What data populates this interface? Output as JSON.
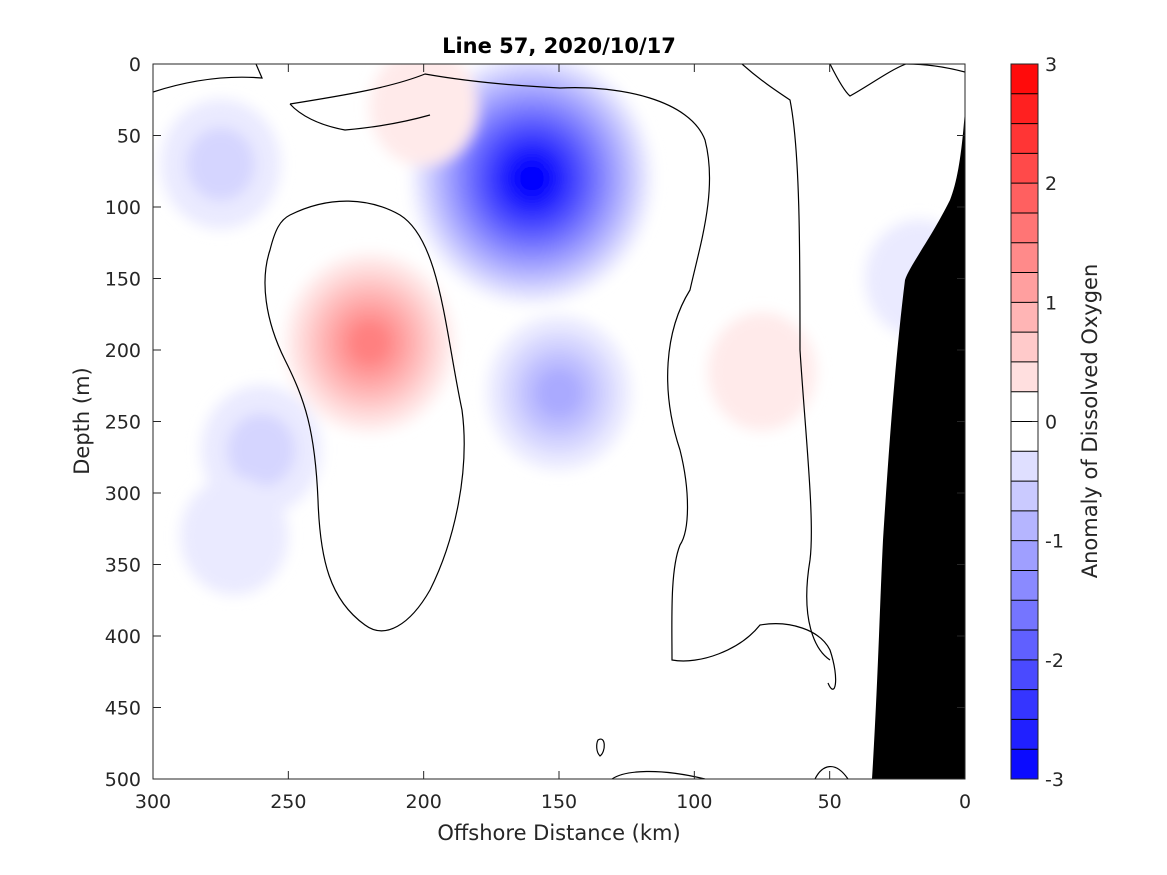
{
  "chart_data": {
    "type": "heatmap",
    "subtype": "filled-contour",
    "title": "Line 57, 2020/10/17",
    "xlabel": "Offshore Distance (km)",
    "ylabel": "Depth (m)",
    "colorbar_label": "Anomaly of Dissolved Oxygen",
    "xlim": [
      300,
      0
    ],
    "ylim": [
      0,
      500
    ],
    "x_reversed": true,
    "y_reversed": true,
    "x_ticks": [
      "300",
      "250",
      "200",
      "150",
      "100",
      "50",
      "0"
    ],
    "y_ticks": [
      "0",
      "50",
      "100",
      "150",
      "200",
      "250",
      "300",
      "350",
      "400",
      "450",
      "500"
    ],
    "colorbar_ticks": [
      "3",
      "2",
      "1",
      "0",
      "-1",
      "-2",
      "-3"
    ],
    "colorbar_range": [
      -3,
      3
    ],
    "contour_step": 0.25,
    "colormap": {
      "negative": "#0000ff",
      "zero": "#ffffff",
      "positive": "#ff0000"
    },
    "mask_color": "#000000",
    "features": [
      {
        "sign": "negative",
        "center_km": 160,
        "center_depth_m": 80,
        "peak": -2.9
      },
      {
        "sign": "negative",
        "center_km": 275,
        "center_depth_m": 70,
        "peak": -0.6
      },
      {
        "sign": "negative",
        "center_km": 150,
        "center_depth_m": 230,
        "peak": -0.9
      },
      {
        "sign": "negative",
        "center_km": 260,
        "center_depth_m": 270,
        "peak": -0.55
      },
      {
        "sign": "negative",
        "center_km": 270,
        "center_depth_m": 330,
        "peak": -0.3
      },
      {
        "sign": "positive",
        "center_km": 220,
        "center_depth_m": 195,
        "peak": 1.4
      },
      {
        "sign": "positive",
        "center_km": 75,
        "center_depth_m": 215,
        "peak": 0.3
      },
      {
        "sign": "positive",
        "center_km": 200,
        "center_depth_m": 30,
        "peak": 0.2
      },
      {
        "sign": "negative",
        "center_km": 17,
        "center_depth_m": 150,
        "peak": -0.3
      }
    ],
    "grid": false,
    "legend": "colorbar-right"
  }
}
